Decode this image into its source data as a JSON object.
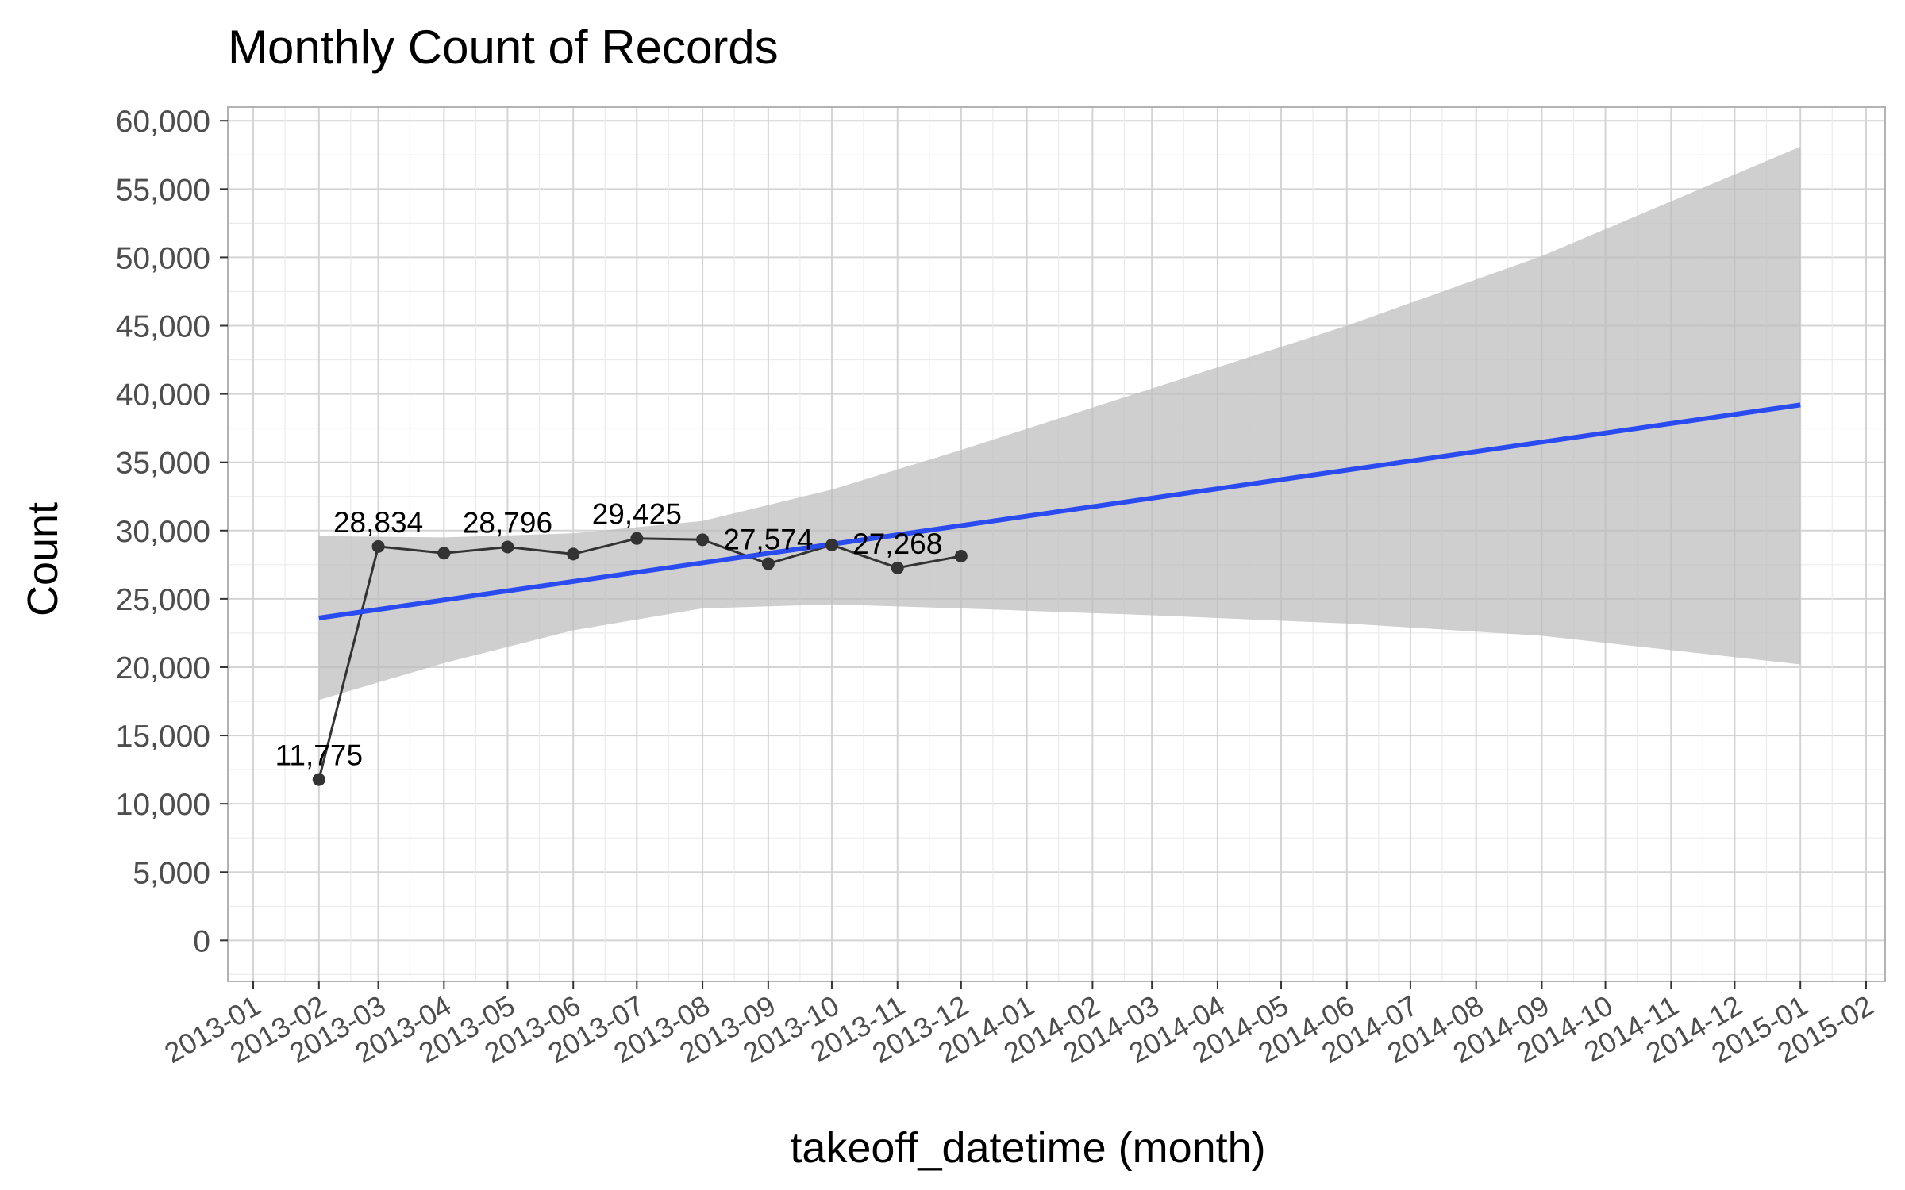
{
  "chart_data": {
    "type": "line",
    "title": "Monthly Count of Records",
    "xlabel": "takeoff_datetime (month)",
    "ylabel": "Count",
    "x_ticks": [
      "2013-01",
      "2013-02",
      "2013-03",
      "2013-04",
      "2013-05",
      "2013-06",
      "2013-07",
      "2013-08",
      "2013-09",
      "2013-10",
      "2013-11",
      "2013-12",
      "2014-01",
      "2014-02",
      "2014-03",
      "2014-04",
      "2014-05",
      "2014-06",
      "2014-07",
      "2014-08",
      "2014-09",
      "2014-10",
      "2014-11",
      "2014-12",
      "2015-01",
      "2015-02"
    ],
    "y_ticks": [
      "0",
      "5,000",
      "10,000",
      "15,000",
      "20,000",
      "25,000",
      "30,000",
      "35,000",
      "40,000",
      "45,000",
      "50,000",
      "55,000",
      "60,000"
    ],
    "ylim": [
      -3000,
      61000
    ],
    "xlim": [
      "2012-12-20",
      "2015-02-10"
    ],
    "grid": true,
    "series": [
      {
        "color": "#333333",
        "points": [
          {
            "x": "2013-02",
            "y": 11775
          },
          {
            "x": "2013-03",
            "y": 28834
          },
          {
            "x": "2013-04",
            "y": 28350
          },
          {
            "x": "2013-05",
            "y": 28796
          },
          {
            "x": "2013-06",
            "y": 28280
          },
          {
            "x": "2013-07",
            "y": 29425
          },
          {
            "x": "2013-08",
            "y": 29330
          },
          {
            "x": "2013-09",
            "y": 27574
          },
          {
            "x": "2013-10",
            "y": 28950
          },
          {
            "x": "2013-11",
            "y": 27268
          },
          {
            "x": "2013-12",
            "y": 28130
          }
        ]
      }
    ],
    "data_labels": [
      {
        "x": "2013-02",
        "y": 11775,
        "text": "11,775"
      },
      {
        "x": "2013-03",
        "y": 28834,
        "text": "28,834"
      },
      {
        "x": "2013-05",
        "y": 28796,
        "text": "28,796"
      },
      {
        "x": "2013-07",
        "y": 29425,
        "text": "29,425"
      },
      {
        "x": "2013-09",
        "y": 27574,
        "text": "27,574"
      },
      {
        "x": "2013-11",
        "y": 27268,
        "text": "27,268"
      }
    ],
    "trend": {
      "method": "linear",
      "color": "#2a4bf0",
      "ribbon_color": "#bdbdbd",
      "points": [
        {
          "x": "2013-02",
          "fit": 23600,
          "lower": 17600,
          "upper": 29600
        },
        {
          "x": "2013-04",
          "fit": 24900,
          "lower": 20300,
          "upper": 29500
        },
        {
          "x": "2013-06",
          "fit": 26200,
          "lower": 22700,
          "upper": 29800
        },
        {
          "x": "2013-08",
          "fit": 27500,
          "lower": 24300,
          "upper": 30700
        },
        {
          "x": "2013-10",
          "fit": 28800,
          "lower": 24600,
          "upper": 33000
        },
        {
          "x": "2013-12",
          "fit": 30100,
          "lower": 24300,
          "upper": 35900
        },
        {
          "x": "2014-03",
          "fit": 32100,
          "lower": 23800,
          "upper": 40400
        },
        {
          "x": "2014-06",
          "fit": 34100,
          "lower": 23200,
          "upper": 45000
        },
        {
          "x": "2014-09",
          "fit": 36200,
          "lower": 22300,
          "upper": 50100
        },
        {
          "x": "2015-01",
          "fit": 39200,
          "lower": 20200,
          "upper": 58100
        }
      ]
    }
  }
}
